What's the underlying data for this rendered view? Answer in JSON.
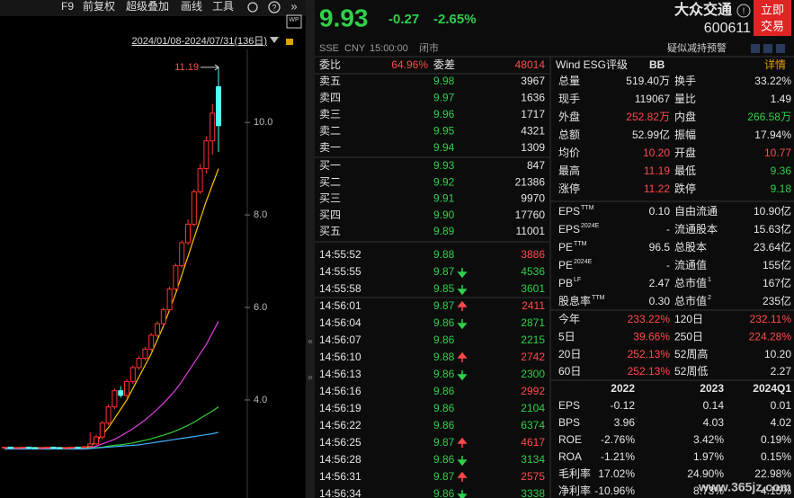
{
  "toolbar": {
    "items": [
      "F9",
      "前复权",
      "超级叠加",
      "画线",
      "工具"
    ],
    "date_range": "2024/01/08-2024/07/31(136日)"
  },
  "chart_data": {
    "type": "candlestick",
    "candles": {
      "open": [
        2.97,
        2.98,
        2.96,
        2.97,
        2.98,
        2.97,
        2.96,
        2.97,
        2.98,
        2.97,
        2.96,
        2.97,
        2.98,
        2.97,
        3.0,
        3.05,
        3.2,
        3.5,
        3.85,
        4.2,
        4.1,
        4.4,
        4.7,
        4.9,
        5.1,
        5.4,
        5.65,
        5.95,
        6.4,
        6.9,
        7.4,
        7.8,
        8.5,
        9.0,
        9.6,
        10.77
      ],
      "high": [
        2.99,
        2.99,
        2.98,
        2.99,
        2.99,
        2.98,
        2.98,
        2.99,
        2.99,
        2.98,
        2.98,
        2.99,
        2.99,
        3.0,
        3.3,
        3.25,
        3.55,
        3.9,
        4.25,
        4.3,
        4.45,
        4.75,
        4.95,
        5.15,
        5.45,
        5.7,
        6.0,
        6.45,
        6.95,
        7.45,
        7.9,
        8.55,
        9.1,
        9.7,
        10.4,
        11.19
      ],
      "low": [
        2.95,
        2.95,
        2.95,
        2.96,
        2.96,
        2.95,
        2.95,
        2.96,
        2.96,
        2.95,
        2.95,
        2.96,
        2.96,
        2.96,
        2.98,
        3.02,
        3.15,
        3.45,
        3.8,
        4.05,
        4.05,
        4.35,
        4.65,
        4.85,
        5.05,
        5.35,
        5.6,
        5.9,
        6.35,
        6.85,
        7.35,
        7.75,
        8.45,
        8.9,
        9.3,
        9.36
      ],
      "close": [
        2.98,
        2.96,
        2.97,
        2.98,
        2.97,
        2.96,
        2.97,
        2.98,
        2.97,
        2.96,
        2.97,
        2.98,
        2.97,
        2.99,
        3.05,
        3.2,
        3.5,
        3.85,
        4.2,
        4.1,
        4.4,
        4.7,
        4.9,
        5.1,
        5.4,
        5.65,
        5.95,
        6.4,
        6.9,
        7.4,
        7.8,
        8.5,
        9.0,
        9.6,
        10.2,
        9.93
      ]
    },
    "up_color": "#ff3232",
    "down_color": "#54fcfc",
    "ma": [
      {
        "color": "#ffc400",
        "values": [
          2.97,
          2.97,
          2.97,
          2.97,
          2.97,
          2.97,
          2.97,
          2.97,
          2.97,
          2.97,
          2.97,
          2.97,
          2.97,
          2.97,
          3.0,
          3.1,
          3.25,
          3.4,
          3.6,
          3.8,
          4.0,
          4.25,
          4.5,
          4.75,
          5.0,
          5.3,
          5.6,
          5.95,
          6.3,
          6.7,
          7.1,
          7.5,
          7.9,
          8.3,
          8.65,
          9.0
        ]
      },
      {
        "color": "#e040e0",
        "values": [
          2.96,
          2.96,
          2.96,
          2.96,
          2.96,
          2.96,
          2.96,
          2.96,
          2.96,
          2.96,
          2.96,
          2.96,
          2.96,
          2.96,
          2.97,
          3.0,
          3.05,
          3.1,
          3.15,
          3.22,
          3.3,
          3.38,
          3.47,
          3.57,
          3.68,
          3.8,
          3.93,
          4.07,
          4.22,
          4.4,
          4.6,
          4.8,
          5.0,
          5.2,
          5.45,
          5.7
        ]
      },
      {
        "color": "#30d030",
        "values": [
          2.95,
          2.95,
          2.95,
          2.95,
          2.95,
          2.95,
          2.95,
          2.95,
          2.95,
          2.95,
          2.95,
          2.95,
          2.95,
          2.95,
          2.96,
          2.97,
          2.98,
          3.0,
          3.02,
          3.03,
          3.05,
          3.07,
          3.1,
          3.13,
          3.16,
          3.2,
          3.24,
          3.28,
          3.33,
          3.39,
          3.45,
          3.52,
          3.6,
          3.68,
          3.76,
          3.85
        ]
      },
      {
        "color": "#40b0ff",
        "values": [
          2.94,
          2.94,
          2.94,
          2.94,
          2.94,
          2.94,
          2.94,
          2.94,
          2.94,
          2.94,
          2.94,
          2.94,
          2.94,
          2.94,
          2.95,
          2.96,
          2.97,
          2.98,
          2.99,
          3.0,
          3.01,
          3.02,
          3.03,
          3.05,
          3.07,
          3.09,
          3.11,
          3.13,
          3.15,
          3.17,
          3.19,
          3.21,
          3.23,
          3.25,
          3.27,
          3.3
        ]
      }
    ],
    "ylim": [
      2.25,
      11.48
    ],
    "yticks": [
      {
        "value": 10,
        "label": "10.0"
      },
      {
        "value": 8,
        "label": "8.0"
      },
      {
        "value": 6,
        "label": "6.0"
      },
      {
        "value": 4,
        "label": "4.0"
      }
    ],
    "grid": false
  },
  "quote": {
    "price": "9.93",
    "change": "-0.27",
    "change_pct": "-2.65%",
    "name": "大众交通",
    "code": "600611",
    "button": [
      "立即",
      "交易"
    ],
    "market_line": [
      "SSE",
      "CNY",
      "15:00:00",
      "闭市"
    ],
    "alert": "疑似减持预警"
  },
  "order_book": {
    "ratio_label": "委比",
    "ratio": "64.96%",
    "diff_label": "委差",
    "diff": "48014",
    "asks": [
      {
        "label": "卖五",
        "price": "9.98",
        "volume": "3967"
      },
      {
        "label": "卖四",
        "price": "9.97",
        "volume": "1636"
      },
      {
        "label": "卖三",
        "price": "9.96",
        "volume": "1717"
      },
      {
        "label": "卖二",
        "price": "9.95",
        "volume": "4321"
      },
      {
        "label": "卖一",
        "price": "9.94",
        "volume": "1309"
      }
    ],
    "bids": [
      {
        "label": "买一",
        "price": "9.93",
        "volume": "847"
      },
      {
        "label": "买二",
        "price": "9.92",
        "volume": "21386"
      },
      {
        "label": "买三",
        "price": "9.91",
        "volume": "9970"
      },
      {
        "label": "买四",
        "price": "9.90",
        "volume": "17760"
      },
      {
        "label": "买五",
        "price": "9.89",
        "volume": "11001"
      }
    ]
  },
  "trades": [
    {
      "time": "14:55:52",
      "price": "9.88",
      "arrow": null,
      "volume": "3886",
      "color": "red"
    },
    {
      "time": "14:55:55",
      "price": "9.87",
      "arrow": "down",
      "volume": "4536",
      "color": "green"
    },
    {
      "time": "14:55:58",
      "price": "9.85",
      "arrow": "down",
      "volume": "3601",
      "color": "green"
    },
    {
      "time": "14:56:01",
      "price": "9.87",
      "arrow": "up",
      "volume": "2411",
      "color": "red"
    },
    {
      "time": "14:56:04",
      "price": "9.86",
      "arrow": "down",
      "volume": "2871",
      "color": "green"
    },
    {
      "time": "14:56:07",
      "price": "9.86",
      "arrow": null,
      "volume": "2215",
      "color": "green"
    },
    {
      "time": "14:56:10",
      "price": "9.88",
      "arrow": "up",
      "volume": "2742",
      "color": "red"
    },
    {
      "time": "14:56:13",
      "price": "9.86",
      "arrow": "down",
      "volume": "2300",
      "color": "green"
    },
    {
      "time": "14:56:16",
      "price": "9.86",
      "arrow": null,
      "volume": "2992",
      "color": "red"
    },
    {
      "time": "14:56:19",
      "price": "9.86",
      "arrow": null,
      "volume": "2104",
      "color": "green"
    },
    {
      "time": "14:56:22",
      "price": "9.86",
      "arrow": null,
      "volume": "6374",
      "color": "green"
    },
    {
      "time": "14:56:25",
      "price": "9.87",
      "arrow": "up",
      "volume": "4617",
      "color": "red"
    },
    {
      "time": "14:56:28",
      "price": "9.86",
      "arrow": "down",
      "volume": "3134",
      "color": "green"
    },
    {
      "time": "14:56:31",
      "price": "9.87",
      "arrow": "up",
      "volume": "2575",
      "color": "red"
    },
    {
      "time": "14:56:34",
      "price": "9.86",
      "arrow": "down",
      "volume": "3338",
      "color": "green"
    }
  ],
  "stats": {
    "esg": {
      "label": "Wind ESG评级",
      "rating": "BB",
      "link": "详情"
    },
    "groups": [
      [
        [
          {
            "label": "总量",
            "value": "519.40万",
            "color": "white"
          },
          {
            "label": "换手",
            "value": "33.22%",
            "color": "white"
          }
        ],
        [
          {
            "label": "现手",
            "value": "119067",
            "color": "white"
          },
          {
            "label": "量比",
            "value": "1.49",
            "color": "white"
          }
        ],
        [
          {
            "label": "外盘",
            "value": "252.82万",
            "color": "red"
          },
          {
            "label": "内盘",
            "value": "266.58万",
            "color": "green"
          }
        ],
        [
          {
            "label": "总额",
            "value": "52.99亿",
            "color": "white"
          },
          {
            "label": "振幅",
            "value": "17.94%",
            "color": "white"
          }
        ],
        [
          {
            "label": "均价",
            "value": "10.20",
            "color": "red"
          },
          {
            "label": "开盘",
            "value": "10.77",
            "color": "red"
          }
        ],
        [
          {
            "label": "最高",
            "value": "11.19",
            "color": "red"
          },
          {
            "label": "最低",
            "value": "9.36",
            "color": "green"
          }
        ],
        [
          {
            "label": "涨停",
            "value": "11.22",
            "color": "red"
          },
          {
            "label": "跌停",
            "value": "9.18",
            "color": "green"
          }
        ]
      ],
      [
        [
          {
            "label": "EPS",
            "sup": "TTM",
            "value": "0.10",
            "color": "white"
          },
          {
            "label": "自由流通",
            "value": "10.90亿",
            "color": "white"
          }
        ],
        [
          {
            "label": "EPS",
            "sup": "2024E",
            "value": "-",
            "color": "white"
          },
          {
            "label": "流通股本",
            "value": "15.63亿",
            "color": "white"
          }
        ],
        [
          {
            "label": "PE",
            "sup": "TTM",
            "value": "96.5",
            "color": "white"
          },
          {
            "label": "总股本",
            "value": "23.64亿",
            "color": "white"
          }
        ],
        [
          {
            "label": "PE",
            "sup": "2024E",
            "value": "-",
            "color": "white"
          },
          {
            "label": "流通值",
            "value": "155亿",
            "color": "white"
          }
        ],
        [
          {
            "label": "PB",
            "sup": "LF",
            "value": "2.47",
            "color": "white"
          },
          {
            "label": "总市值",
            "sup": "1",
            "value": "167亿",
            "color": "white"
          }
        ],
        [
          {
            "label": "股息率",
            "sup": "TTM",
            "value": "0.30",
            "color": "white"
          },
          {
            "label": "总市值",
            "sup": "2",
            "value": "235亿",
            "color": "white"
          }
        ]
      ],
      [
        [
          {
            "label": "今年",
            "value": "233.22%",
            "color": "red"
          },
          {
            "label": "120日",
            "value": "232.11%",
            "color": "red"
          }
        ],
        [
          {
            "label": "5日",
            "value": "39.66%",
            "color": "red"
          },
          {
            "label": "250日",
            "value": "224.28%",
            "color": "red"
          }
        ],
        [
          {
            "label": "20日",
            "value": "252.13%",
            "color": "red"
          },
          {
            "label": "52周高",
            "value": "10.20",
            "color": "white"
          }
        ],
        [
          {
            "label": "60日",
            "value": "252.13%",
            "color": "red"
          },
          {
            "label": "52周低",
            "value": "2.27",
            "color": "white"
          }
        ]
      ]
    ]
  },
  "financials": {
    "columns": [
      "2022",
      "2023",
      "2024Q1"
    ],
    "rows": [
      {
        "label": "EPS",
        "values": [
          "-0.12",
          "0.14",
          "0.01"
        ]
      },
      {
        "label": "BPS",
        "values": [
          "3.96",
          "4.03",
          "4.02"
        ]
      },
      {
        "label": "ROE",
        "values": [
          "-2.76%",
          "3.42%",
          "0.19%"
        ]
      },
      {
        "label": "ROA",
        "values": [
          "-1.21%",
          "1.97%",
          "0.15%"
        ]
      },
      {
        "label": "毛利率",
        "values": [
          "17.02%",
          "24.90%",
          "22.98%"
        ]
      },
      {
        "label": "净利率",
        "values": [
          "-10.96%",
          "8.73%",
          "4.15%"
        ]
      }
    ]
  },
  "watermark": "www.365jz.com"
}
